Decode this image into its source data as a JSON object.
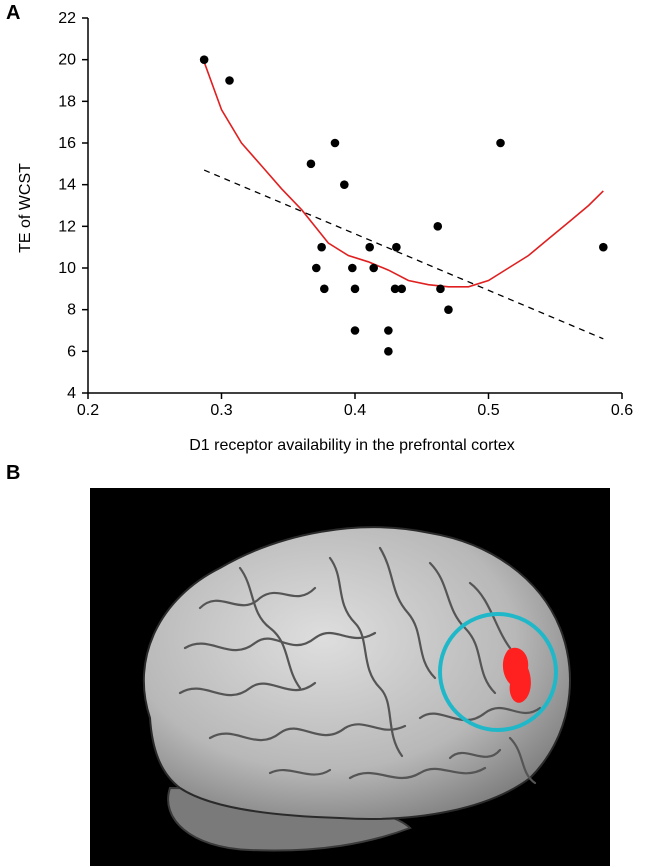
{
  "panels": {
    "a_label": "A",
    "b_label": "B"
  },
  "chart_data": {
    "type": "scatter",
    "title": "",
    "xlabel": "D1 receptor availability in the prefrontal cortex",
    "ylabel": "TE of WCST",
    "xlim": [
      0.2,
      0.6
    ],
    "ylim": [
      4,
      22
    ],
    "xticks": [
      0.2,
      0.3,
      0.4,
      0.5,
      0.6
    ],
    "xtick_labels": [
      "0.2",
      "0.3",
      "0.4",
      "0.5",
      "0.6"
    ],
    "yticks": [
      4,
      6,
      8,
      10,
      12,
      14,
      16,
      18,
      20,
      22
    ],
    "ytick_labels": [
      "4",
      "6",
      "8",
      "10",
      "12",
      "14",
      "16",
      "18",
      "20",
      "22"
    ],
    "grid": false,
    "points": [
      {
        "x": 0.287,
        "y": 20
      },
      {
        "x": 0.306,
        "y": 19
      },
      {
        "x": 0.367,
        "y": 15
      },
      {
        "x": 0.371,
        "y": 10
      },
      {
        "x": 0.375,
        "y": 11
      },
      {
        "x": 0.377,
        "y": 9
      },
      {
        "x": 0.385,
        "y": 16
      },
      {
        "x": 0.392,
        "y": 14
      },
      {
        "x": 0.398,
        "y": 10
      },
      {
        "x": 0.4,
        "y": 9
      },
      {
        "x": 0.4,
        "y": 7
      },
      {
        "x": 0.411,
        "y": 11
      },
      {
        "x": 0.414,
        "y": 10
      },
      {
        "x": 0.425,
        "y": 7
      },
      {
        "x": 0.425,
        "y": 6
      },
      {
        "x": 0.43,
        "y": 9
      },
      {
        "x": 0.431,
        "y": 11
      },
      {
        "x": 0.435,
        "y": 9
      },
      {
        "x": 0.462,
        "y": 12
      },
      {
        "x": 0.464,
        "y": 9
      },
      {
        "x": 0.47,
        "y": 8
      },
      {
        "x": 0.509,
        "y": 16
      },
      {
        "x": 0.586,
        "y": 11
      }
    ],
    "linear_fit": {
      "points": [
        [
          0.287,
          14.7
        ],
        [
          0.586,
          6.6
        ]
      ],
      "color": "#000000",
      "style": "dashed"
    },
    "smooth_curve": {
      "color": "#e02020",
      "points": [
        [
          0.287,
          19.9
        ],
        [
          0.3,
          17.6
        ],
        [
          0.315,
          16.0
        ],
        [
          0.33,
          14.9
        ],
        [
          0.345,
          13.8
        ],
        [
          0.36,
          12.8
        ],
        [
          0.37,
          12.0
        ],
        [
          0.38,
          11.2
        ],
        [
          0.395,
          10.6
        ],
        [
          0.41,
          10.3
        ],
        [
          0.425,
          9.9
        ],
        [
          0.44,
          9.4
        ],
        [
          0.455,
          9.2
        ],
        [
          0.47,
          9.1
        ],
        [
          0.485,
          9.1
        ],
        [
          0.5,
          9.4
        ],
        [
          0.515,
          10.0
        ],
        [
          0.53,
          10.6
        ],
        [
          0.545,
          11.4
        ],
        [
          0.56,
          12.2
        ],
        [
          0.575,
          13.0
        ],
        [
          0.586,
          13.7
        ]
      ]
    },
    "marker_color": "#000000"
  },
  "brain_image": {
    "background_color": "#000000",
    "brain_color": "#c8c8c8",
    "highlight_color": "#ff2020",
    "circle_color": "#20b8c8"
  }
}
